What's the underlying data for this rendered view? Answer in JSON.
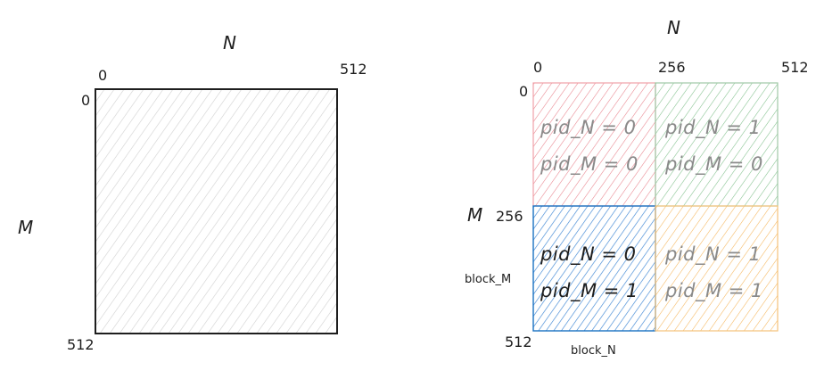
{
  "left_matrix": {
    "n_label": "N",
    "m_label": "M",
    "top_left_x": "0",
    "top_left_y": "0",
    "top_right": "512",
    "bottom_left": "512"
  },
  "right_matrix": {
    "n_label": "N",
    "m_label": "M",
    "tick_x_0": "0",
    "tick_x_mid": "256",
    "tick_x_end": "512",
    "tick_y_0": "0",
    "tick_y_mid": "256",
    "tick_y_end": "512",
    "block_m_label": "block_M",
    "block_n_label": "block_N",
    "blocks": [
      {
        "line1": "pid_N = 0",
        "line2": "pid_M = 0",
        "color": "#e03131",
        "text_color": "#8a8a8a"
      },
      {
        "line1": "pid_N = 1",
        "line2": "pid_M = 0",
        "color": "#2f9e44",
        "text_color": "#8a8a8a"
      },
      {
        "line1": "pid_N = 0",
        "line2": "pid_M = 1",
        "color": "#1971c2",
        "text_color": "#1e1e1e"
      },
      {
        "line1": "pid_N = 1",
        "line2": "pid_M = 1",
        "color": "#f08c00",
        "text_color": "#8a8a8a"
      }
    ]
  }
}
